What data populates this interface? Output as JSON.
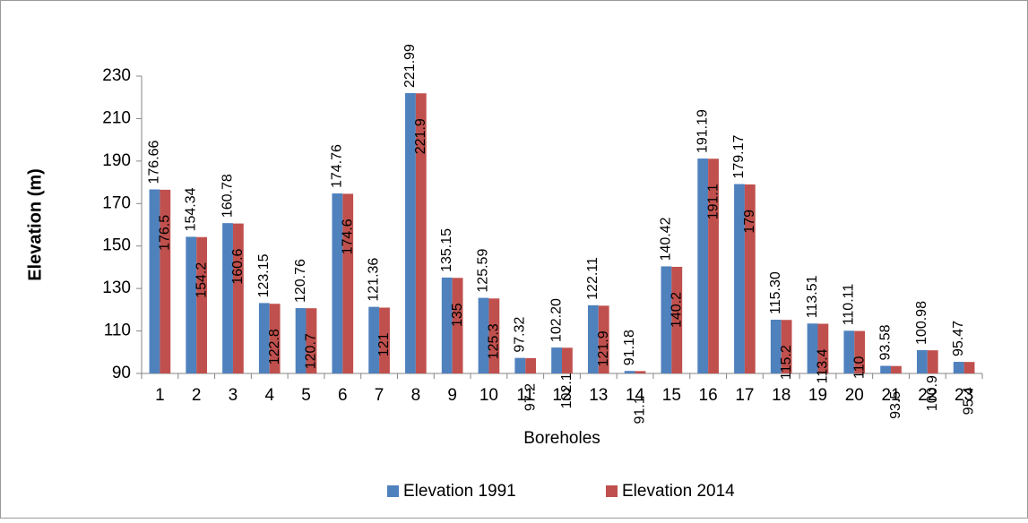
{
  "chart_data": {
    "type": "bar",
    "x_label": "Boreholes",
    "y_label": "Elevation (m)",
    "categories": [
      "1",
      "2",
      "3",
      "4",
      "5",
      "6",
      "7",
      "8",
      "9",
      "10",
      "11",
      "12",
      "13",
      "14",
      "15",
      "16",
      "17",
      "18",
      "19",
      "20",
      "21",
      "22",
      "23"
    ],
    "series": [
      {
        "name": "Elevation 1991",
        "color": "#4f81bd",
        "values": [
          176.66,
          154.34,
          160.78,
          123.15,
          120.76,
          174.76,
          121.36,
          221.99,
          135.15,
          125.59,
          97.32,
          102.2,
          122.11,
          91.18,
          140.42,
          191.19,
          179.17,
          115.3,
          113.51,
          110.11,
          93.58,
          100.98,
          95.47
        ],
        "value_labels": [
          "176.66",
          "154.34",
          "160.78",
          "123.15",
          "120.76",
          "174.76",
          "121.36",
          "221.99",
          "135.15",
          "125.59",
          "97.32",
          "102.20",
          "122.11",
          "91.18",
          "140.42",
          "191.19",
          "179.17",
          "115.30",
          "113.51",
          "110.11",
          "93.58",
          "100.98",
          "95.47"
        ]
      },
      {
        "name": "Elevation 2014",
        "color": "#c0504d",
        "values": [
          176.5,
          154.2,
          160.6,
          122.8,
          120.7,
          174.6,
          121,
          221.9,
          135,
          125.3,
          97.2,
          102.1,
          121.9,
          91.1,
          140.2,
          191.1,
          179,
          115.2,
          113.4,
          110,
          93.5,
          100.9,
          95.4
        ]
      }
    ],
    "ylim": [
      90,
      230
    ],
    "yticks": [
      90,
      110,
      130,
      150,
      170,
      190,
      210,
      230
    ],
    "grid": false,
    "legend": "bottom"
  }
}
